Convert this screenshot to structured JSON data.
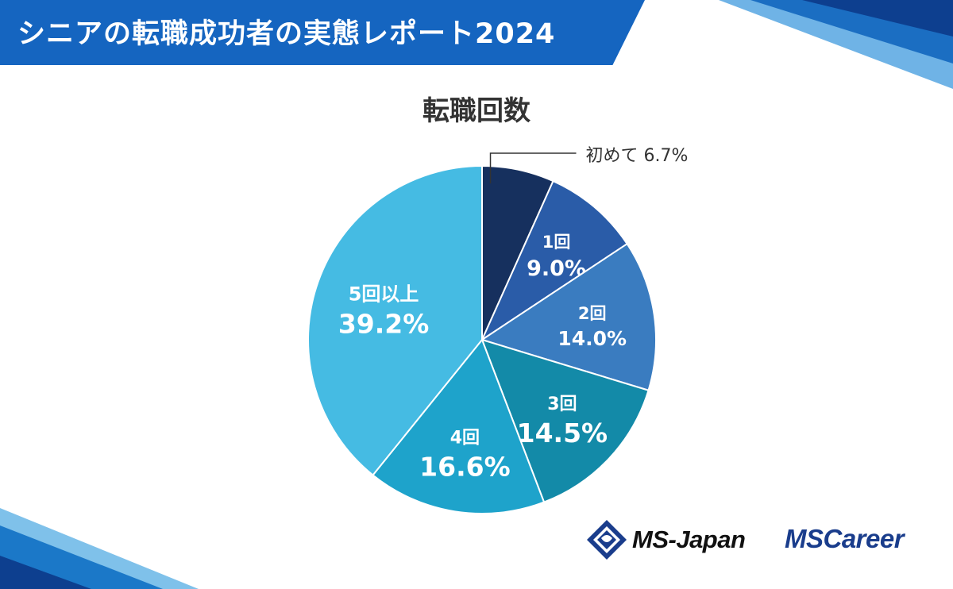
{
  "header": {
    "title": "シニアの転職成功者の実態レポート2024"
  },
  "brand": {
    "primary_color": "#1565c0",
    "logo1": "MS-Japan",
    "logo2": "MSCareer"
  },
  "chart_data": {
    "type": "pie",
    "title": "転職回数",
    "start_angle_deg": 0,
    "direction": "clockwise",
    "slices": [
      {
        "label": "初めて",
        "value": 6.7,
        "display": "6.7%",
        "color": "#16305e"
      },
      {
        "label": "1回",
        "value": 9.0,
        "display": "9.0%",
        "color": "#2a5ca8"
      },
      {
        "label": "2回",
        "value": 14.0,
        "display": "14.0%",
        "color": "#3a7cc0"
      },
      {
        "label": "3回",
        "value": 14.5,
        "display": "14.5%",
        "color": "#138aa8"
      },
      {
        "label": "4回",
        "value": 16.6,
        "display": "16.6%",
        "color": "#1ea3cb"
      },
      {
        "label": "5回以上",
        "value": 39.2,
        "display": "39.2%",
        "color": "#45bbe3"
      }
    ]
  }
}
